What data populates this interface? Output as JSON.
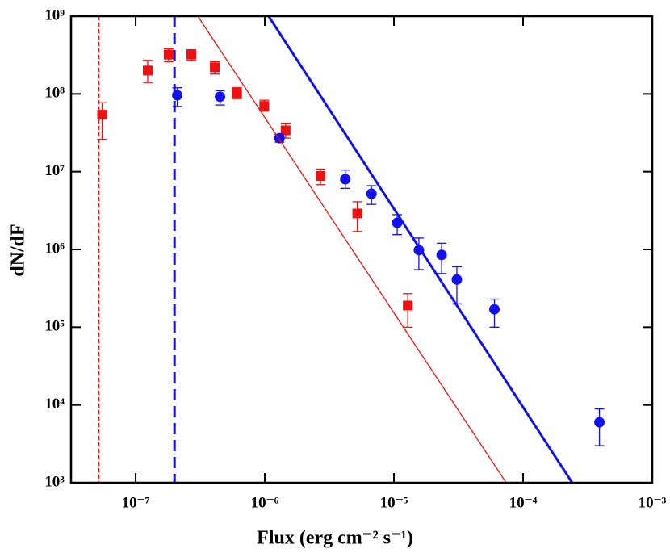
{
  "chart_data": {
    "type": "scatter",
    "x_label": "Flux  (erg cm⁻² s⁻¹)",
    "y_label": "dN/dF",
    "xscale": "log",
    "yscale": "log",
    "xlim": [
      3.16e-08,
      0.001
    ],
    "ylim": [
      1000.0,
      1000000000.0
    ],
    "xticks": [
      {
        "value": 1e-07,
        "label": "10⁻⁷"
      },
      {
        "value": 1e-06,
        "label": "10⁻⁶"
      },
      {
        "value": 1e-05,
        "label": "10⁻⁵"
      },
      {
        "value": 0.0001,
        "label": "10⁻⁴"
      },
      {
        "value": 0.001,
        "label": "10⁻³"
      }
    ],
    "yticks": [
      {
        "value": 1000.0,
        "label": "10³"
      },
      {
        "value": 10000.0,
        "label": "10⁴"
      },
      {
        "value": 100000.0,
        "label": "10⁵"
      },
      {
        "value": 1000000.0,
        "label": "10⁶"
      },
      {
        "value": 10000000.0,
        "label": "10⁷"
      },
      {
        "value": 100000000.0,
        "label": "10⁸"
      },
      {
        "value": 1000000000.0,
        "label": "10⁹"
      }
    ],
    "series": [
      {
        "color": "#ee1111",
        "marker": "square",
        "x": [
          5.5e-08,
          1.24e-07,
          1.8e-07,
          2.7e-07,
          4.1e-07,
          6.1e-07,
          9.9e-07,
          1.45e-06,
          2.7e-06,
          5.2e-06,
          1.28e-05
        ],
        "values": [
          54000000.0,
          200000000.0,
          320000000.0,
          320000000.0,
          220000000.0,
          103000000.0,
          70000000.0,
          34000000.0,
          8800000.0,
          2900000.0,
          190000.0
        ],
        "upper": [
          77000000.0,
          270000000.0,
          380000000.0,
          370000000.0,
          260000000.0,
          120000000.0,
          83000000.0,
          42000000.0,
          10800000.0,
          4100000.0,
          270000.0
        ],
        "lower": [
          26000000.0,
          140000000.0,
          260000000.0,
          270000000.0,
          180000000.0,
          87000000.0,
          60000000.0,
          27000000.0,
          6800000.0,
          1700000.0,
          100000.0
        ]
      },
      {
        "color": "#1111ee",
        "marker": "circle",
        "x": [
          2.1e-07,
          4.5e-07,
          1.3e-06,
          4.2e-06,
          6.7e-06,
          1.06e-05,
          1.56e-05,
          2.34e-05,
          3.07e-05,
          6e-05,
          0.00039
        ],
        "values": [
          96000000.0,
          92000000.0,
          27000000.0,
          8000000.0,
          5200000.0,
          2200000.0,
          980000.0,
          850000.0,
          410000.0,
          170000.0,
          6000.0
        ],
        "upper": [
          120000000.0,
          110000000.0,
          30000000.0,
          10500000.0,
          6600000.0,
          2800000.0,
          1400000.0,
          1200000.0,
          600000.0,
          230000.0,
          8900.0
        ],
        "lower": [
          69000000.0,
          72000000.0,
          24000000.0,
          6100000.0,
          3800000.0,
          1550000.0,
          550000.0,
          490000.0,
          200000.0,
          100000.0,
          3000.0
        ]
      },
      {
        "type": "line",
        "color": "#ee1111",
        "width": 1.3,
        "x": [
          3.03e-07,
          7.4e-05
        ],
        "values": [
          1000000000.0,
          1000.0
        ]
      },
      {
        "type": "line",
        "color": "#1111ee",
        "width": 3,
        "x": [
          1.07e-06,
          0.00024
        ],
        "values": [
          1000000000.0,
          1000.0
        ]
      }
    ],
    "vlines": [
      {
        "x": 5.2e-08,
        "color": "#ee1111",
        "width": 1.3
      },
      {
        "x": 2e-07,
        "color": "#1111ee",
        "width": 3
      }
    ]
  }
}
